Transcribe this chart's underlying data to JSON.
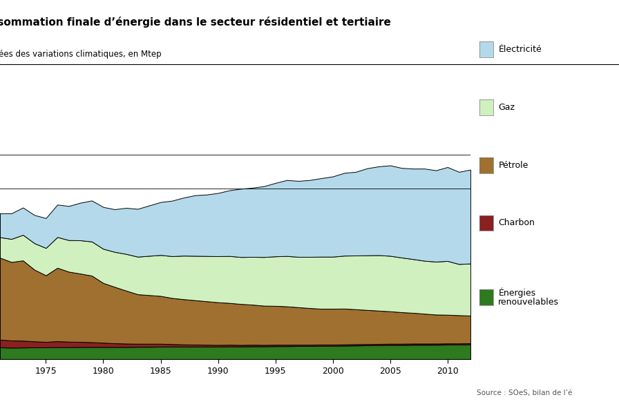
{
  "title": "Consommation finale d’énergie dans le secteur résidentiel et tertiaire",
  "subtitle": "corrigées des variations climatiques, en Mtep",
  "source": "Source : SOeS, bilan de l’é",
  "years": [
    1971,
    1972,
    1973,
    1974,
    1975,
    1976,
    1977,
    1978,
    1979,
    1980,
    1981,
    1982,
    1983,
    1984,
    1985,
    1986,
    1987,
    1988,
    1989,
    1990,
    1991,
    1992,
    1993,
    1994,
    1995,
    1996,
    1997,
    1998,
    1999,
    2000,
    2001,
    2002,
    2003,
    2004,
    2005,
    2006,
    2007,
    2008,
    2009,
    2010,
    2011,
    2012
  ],
  "energies_renouvelables": [
    7.0,
    6.8,
    6.9,
    7.0,
    7.0,
    7.1,
    7.1,
    7.2,
    7.2,
    7.2,
    7.2,
    7.2,
    7.3,
    7.3,
    7.4,
    7.4,
    7.4,
    7.4,
    7.4,
    7.4,
    7.5,
    7.5,
    7.6,
    7.6,
    7.7,
    7.7,
    7.8,
    7.8,
    7.9,
    7.9,
    8.0,
    8.1,
    8.2,
    8.3,
    8.4,
    8.4,
    8.5,
    8.5,
    8.5,
    8.6,
    8.6,
    8.7
  ],
  "charbon": [
    4.5,
    4.2,
    4.0,
    3.5,
    3.2,
    3.5,
    3.2,
    3.0,
    2.8,
    2.5,
    2.2,
    2.0,
    1.8,
    1.8,
    1.7,
    1.5,
    1.3,
    1.2,
    1.1,
    1.0,
    1.0,
    0.9,
    0.9,
    0.8,
    0.8,
    0.8,
    0.7,
    0.7,
    0.7,
    0.7,
    0.7,
    0.7,
    0.7,
    0.7,
    0.7,
    0.7,
    0.7,
    0.7,
    0.7,
    0.7,
    0.7,
    0.7
  ],
  "petrole": [
    48.0,
    46.0,
    47.0,
    42.0,
    39.0,
    43.0,
    41.0,
    40.0,
    39.0,
    35.0,
    33.0,
    31.0,
    29.0,
    28.5,
    28.0,
    27.0,
    26.5,
    26.0,
    25.5,
    25.0,
    24.5,
    24.0,
    23.5,
    23.0,
    22.8,
    22.5,
    22.0,
    21.5,
    21.0,
    21.0,
    21.0,
    20.5,
    20.0,
    19.5,
    19.0,
    18.5,
    18.0,
    17.5,
    17.0,
    16.8,
    16.5,
    16.2
  ],
  "gaz": [
    12.0,
    13.5,
    15.0,
    15.5,
    16.0,
    18.0,
    18.5,
    19.5,
    20.0,
    20.0,
    20.5,
    21.5,
    22.0,
    23.0,
    24.0,
    24.5,
    25.5,
    26.0,
    26.5,
    27.0,
    27.5,
    27.5,
    28.0,
    28.5,
    29.0,
    29.5,
    29.5,
    30.0,
    30.5,
    30.5,
    31.0,
    31.5,
    32.0,
    32.5,
    32.5,
    32.0,
    31.5,
    31.0,
    31.0,
    31.5,
    30.0,
    30.5
  ],
  "electricite": [
    14.0,
    15.0,
    16.0,
    16.5,
    17.5,
    19.0,
    20.0,
    22.0,
    24.0,
    24.5,
    25.0,
    27.0,
    28.0,
    29.5,
    31.0,
    32.5,
    34.0,
    35.5,
    36.0,
    37.0,
    38.5,
    40.0,
    40.5,
    41.5,
    43.0,
    44.5,
    44.5,
    45.0,
    46.0,
    47.0,
    48.5,
    49.0,
    51.0,
    52.0,
    53.0,
    52.5,
    53.0,
    54.0,
    53.5,
    55.0,
    54.0,
    55.0
  ],
  "color_electricite": "#b3d9ea",
  "color_gaz": "#d0f0c0",
  "color_petrole": "#a07030",
  "color_charbon": "#8b2020",
  "color_renouvelables": "#2d7a1f",
  "hlines": [
    100,
    120
  ],
  "ylim": [
    0,
    150
  ],
  "xlim_start": 1971,
  "xlim_end": 2012,
  "xticks": [
    1975,
    1980,
    1985,
    1990,
    1995,
    2000,
    2005,
    2010
  ],
  "background_color": "#ffffff"
}
